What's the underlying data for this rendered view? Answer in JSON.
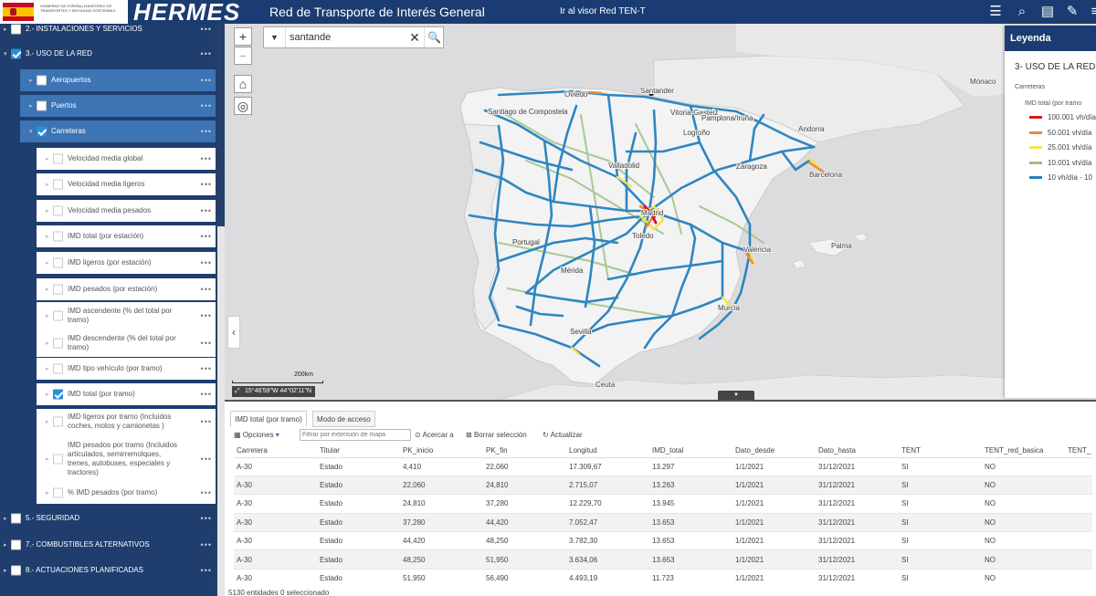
{
  "header": {
    "ministry_text": "GOBIERNO DE ESPAÑA | MINISTERIO DE TRANSPORTES Y MOVILIDAD SOSTENIBLE",
    "brand": "HERMES",
    "app_title": "Red de Transporte de Interés General",
    "ten_t_link": "Ir al visor Red TEN-T",
    "icons": [
      "list-icon",
      "search-map-icon",
      "layers-icon",
      "edit-icon",
      "menu-icon"
    ]
  },
  "sidebar": {
    "items": [
      {
        "label": "2.- INSTALACIONES Y SERVICIOS",
        "level": 1,
        "checked": false
      },
      {
        "label": "3.- USO DE LA RED",
        "level": 1,
        "checked": true
      },
      {
        "label": "Aeropuertos",
        "level": 2,
        "checked": false
      },
      {
        "label": "Puertos",
        "level": 2,
        "checked": false
      },
      {
        "label": "Carreteras",
        "level": 2,
        "checked": true
      },
      {
        "label": "Velocidad media global",
        "level": 3,
        "checked": false
      },
      {
        "label": "Velocidad media ligeros",
        "level": 3,
        "checked": false
      },
      {
        "label": "Velocidad media pesados",
        "level": 3,
        "checked": false
      },
      {
        "label": "IMD total (por estación)",
        "level": 3,
        "checked": false
      },
      {
        "label": "IMD ligeros (por estación)",
        "level": 3,
        "checked": false
      },
      {
        "label": "IMD pesados (por estación)",
        "level": 3,
        "checked": false
      },
      {
        "label": "IMD ascendente (% del total por tramo)",
        "level": 3,
        "checked": false
      },
      {
        "label": "IMD descendente (% del total por tramo)",
        "level": 3,
        "checked": false
      },
      {
        "label": "IMD tipo vehículo (por tramo)",
        "level": 3,
        "checked": false
      },
      {
        "label": "IMD total (por tramo)",
        "level": 3,
        "checked": true
      },
      {
        "label": "IMD ligeros por tramo (Incluidos coches, motos y camionetas )",
        "level": 3,
        "checked": false
      },
      {
        "label": "IMD pesados por tramo (Incluidos articulados, semirremolques, trenes, autobuses, especiales y tractores)",
        "level": 3,
        "checked": false
      },
      {
        "label": "% IMD pesados (por tramo)",
        "level": 3,
        "checked": false
      },
      {
        "label": "5.- SEGURIDAD",
        "level": 1,
        "checked": false
      },
      {
        "label": "7.- COMBUSTIBLES ALTERNATIVOS",
        "level": 1,
        "checked": false
      },
      {
        "label": "8.- ACTUACIONES PLANIFICADAS",
        "level": 1,
        "checked": false
      }
    ],
    "more_label": "•••"
  },
  "map": {
    "search_value": "santande",
    "search_clear": "✕",
    "search_go": "🔍",
    "dropdown": "▼",
    "zoom_in": "+",
    "zoom_out": "−",
    "home": "⌂",
    "locate": "◎",
    "collapse": "‹",
    "scale_label": "200km",
    "coords": "15°46'59\"W 44°02'11\"N",
    "panel_toggle": "▼",
    "places": [
      {
        "name": "Oviedo"
      },
      {
        "name": "Santander"
      },
      {
        "name": "Santiago de Compostela"
      },
      {
        "name": "Vitoria-Gasteiz"
      },
      {
        "name": "Pamplona/Iruña"
      },
      {
        "name": "Andorra"
      },
      {
        "name": "Logroño"
      },
      {
        "name": "Valladolid"
      },
      {
        "name": "Zaragoza"
      },
      {
        "name": "Barcelona"
      },
      {
        "name": "Portugal"
      },
      {
        "name": "Madrid"
      },
      {
        "name": "Toledo"
      },
      {
        "name": "Valencia"
      },
      {
        "name": "Palma"
      },
      {
        "name": "Mérida"
      },
      {
        "name": "Murcia"
      },
      {
        "name": "Sevilla"
      },
      {
        "name": "Ceuta"
      },
      {
        "name": "Mónaco"
      }
    ]
  },
  "legend": {
    "title": "Leyenda",
    "group": "3- USO DE LA RED",
    "sub": "Carreteras",
    "field": "IMD total (por tramo",
    "items": [
      {
        "label": "100.001 vh/día",
        "color": "#d7191c"
      },
      {
        "label": "50.001 vh/día",
        "color": "#f08a3c"
      },
      {
        "label": "25.001 vh/día",
        "color": "#f5e24a"
      },
      {
        "label": "10.001 vh/día",
        "color": "#9fbf7e"
      },
      {
        "label": "10 vh/día - 10",
        "color": "#2c7fb8"
      }
    ]
  },
  "table": {
    "tabs": [
      "IMD total (por tramo)",
      "Modo de acceso"
    ],
    "toolbar": {
      "opciones": "Opciones",
      "filter_placeholder": "Filtrar por extensión de mapa",
      "acercar": "Acercar a",
      "borrar": "Borrar selección",
      "actualizar": "Actualizar"
    },
    "columns": [
      "Carretera",
      "Titular",
      "PK_inicio",
      "PK_fin",
      "Longitud",
      "IMD_total",
      "Dato_desde",
      "Dato_hasta",
      "TENT",
      "TENT_red_basica",
      "TENT_"
    ],
    "rows": [
      [
        "A-30",
        "Estado",
        "4,410",
        "22,060",
        "17.309,67",
        "13.297",
        "1/1/2021",
        "31/12/2021",
        "SI",
        "NO",
        ""
      ],
      [
        "A-30",
        "Estado",
        "22,060",
        "24,810",
        "2.715,07",
        "13.263",
        "1/1/2021",
        "31/12/2021",
        "SI",
        "NO",
        ""
      ],
      [
        "A-30",
        "Estado",
        "24,810",
        "37,280",
        "12.229,70",
        "13.945",
        "1/1/2021",
        "31/12/2021",
        "SI",
        "NO",
        ""
      ],
      [
        "A-30",
        "Estado",
        "37,280",
        "44,420",
        "7.052,47",
        "13.653",
        "1/1/2021",
        "31/12/2021",
        "SI",
        "NO",
        ""
      ],
      [
        "A-30",
        "Estado",
        "44,420",
        "48,250",
        "3.782,30",
        "13.653",
        "1/1/2021",
        "31/12/2021",
        "SI",
        "NO",
        ""
      ],
      [
        "A-30",
        "Estado",
        "48,250",
        "51,950",
        "3.634,06",
        "13.653",
        "1/1/2021",
        "31/12/2021",
        "SI",
        "NO",
        ""
      ],
      [
        "A-30",
        "Estado",
        "51,950",
        "56,490",
        "4.493,19",
        "11.723",
        "1/1/2021",
        "31/12/2021",
        "SI",
        "NO",
        ""
      ]
    ],
    "status": "5130 entidades 0 seleccionado"
  }
}
